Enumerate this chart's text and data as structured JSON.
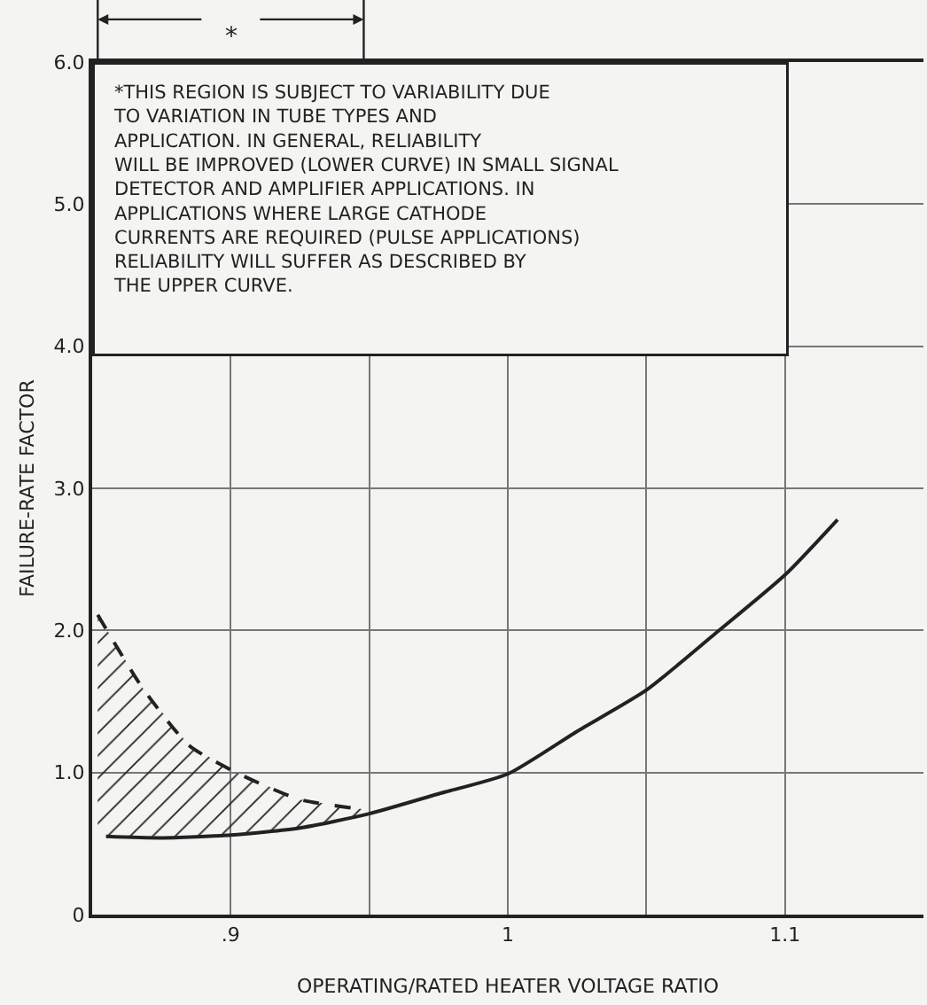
{
  "chart_data": {
    "type": "line",
    "xlabel": "OPERATING/RATED HEATER VOLTAGE RATIO",
    "ylabel": "FAILURE-RATE FACTOR",
    "xlim": [
      0.85,
      1.15
    ],
    "xticks": [
      {
        "value": 0.9,
        "label": ".9"
      },
      {
        "value": 0.95,
        "label": null
      },
      {
        "value": 1,
        "label": "1"
      },
      {
        "value": 1.05,
        "label": null
      },
      {
        "value": 1.1,
        "label": "1.1"
      }
    ],
    "ylim": [
      0,
      6
    ],
    "yticks": [
      0,
      {
        "value": 1,
        "label": "1.0"
      },
      {
        "value": 2,
        "label": "2.0"
      },
      {
        "value": 3,
        "label": "3.0"
      },
      {
        "value": 4,
        "label": "4.0"
      },
      {
        "value": 5,
        "label": "5.0"
      },
      {
        "value": 6,
        "label": "6.0"
      }
    ],
    "grid": true,
    "series": [
      {
        "color": "#222222",
        "line_style": "solid",
        "x": [
          0.855,
          0.875,
          0.9,
          0.925,
          0.95,
          0.975,
          1.0,
          1.025,
          1.05,
          1.075,
          1.1,
          1.119
        ],
        "values": [
          0.55,
          0.54,
          0.56,
          0.61,
          0.71,
          0.85,
          0.99,
          1.29,
          1.58,
          1.98,
          2.39,
          2.78
        ]
      },
      {
        "color": "#222222",
        "line_style": "dashed",
        "x": [
          0.852,
          0.868,
          0.885,
          0.903,
          0.925,
          0.948
        ],
        "values": [
          2.11,
          1.6,
          1.19,
          0.99,
          0.81,
          0.74
        ],
        "lower": [
          0.55,
          0.55,
          0.55,
          0.56,
          0.61,
          0.7
        ],
        "upper": [
          2.11,
          1.6,
          1.19,
          0.99,
          0.81,
          0.74
        ]
      }
    ],
    "annotations": [
      "*",
      "*THIS REGION IS SUBJECT TO VARIABILITY DUE\nTO VARIATION IN TUBE TYPES AND\nAPPLICATION. IN GENERAL, RELIABILITY\nWILL BE IMPROVED (LOWER CURVE) IN SMALL SIGNAL\nDETECTOR AND AMPLIFIER APPLICATIONS. IN\nAPPLICATIONS WHERE LARGE CATHODE\nCURRENTS ARE REQUIRED (PULSE APPLICATIONS)\nRELIABILITY WILL SUFFER AS DESCRIBED BY\nTHE UPPER CURVE."
    ]
  }
}
